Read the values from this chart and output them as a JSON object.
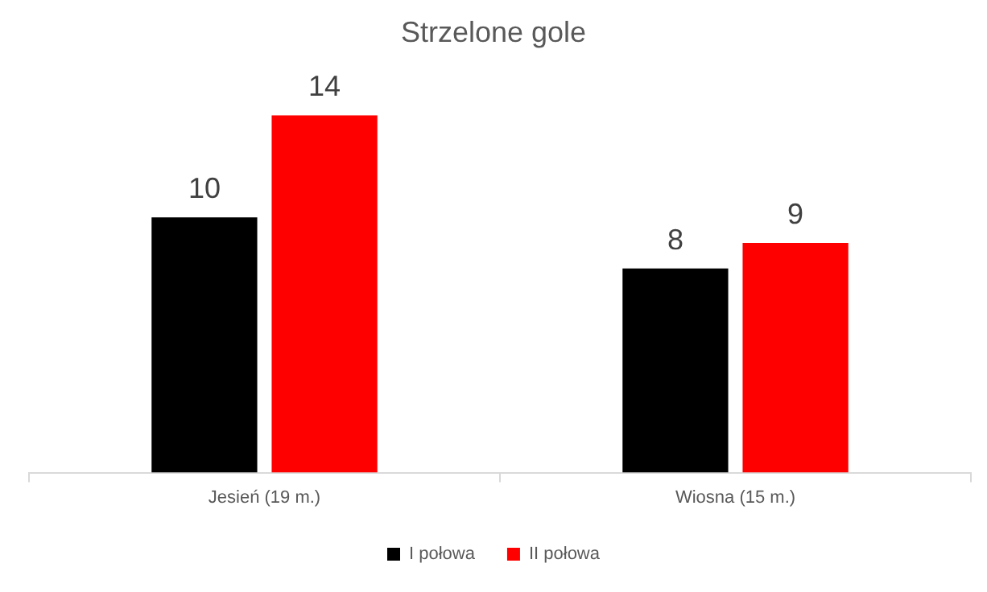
{
  "chart_data": {
    "type": "bar",
    "title": "Strzelone gole",
    "categories": [
      "Jesień (19 m.)",
      "Wiosna (15 m.)"
    ],
    "series": [
      {
        "name": "I połowa",
        "color": "#000000",
        "values": [
          10,
          8
        ]
      },
      {
        "name": "II połowa",
        "color": "#ff0000",
        "values": [
          14,
          9
        ]
      }
    ],
    "relative": false,
    "data_labels": true,
    "legend": "bottom",
    "grid": false
  }
}
